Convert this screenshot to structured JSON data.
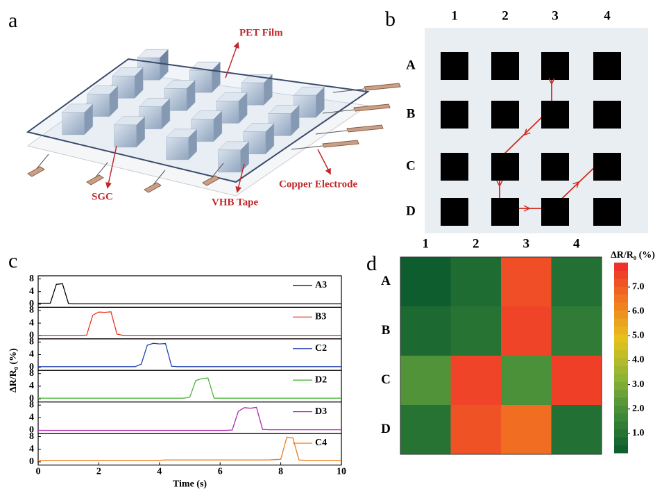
{
  "panel_a": {
    "letter": "a",
    "labels": [
      "PET Film",
      "SGC",
      "VHB Tape",
      "Copper Electrode"
    ]
  },
  "panel_b": {
    "letter": "b",
    "columns": [
      "1",
      "2",
      "3",
      "4"
    ],
    "rows": [
      "A",
      "B",
      "C",
      "D"
    ]
  },
  "chart_data": [
    {
      "type": "line",
      "panel_label": "c",
      "x_label": "Time (s)",
      "y_label": "ΔR/R₀ (%)",
      "x": [
        0,
        0.2,
        0.4,
        0.6,
        0.8,
        1,
        1.2,
        1.4,
        1.6,
        1.8,
        2,
        2.2,
        2.4,
        2.6,
        2.8,
        3,
        3.2,
        3.4,
        3.6,
        3.8,
        4,
        4.2,
        4.4,
        4.6,
        4.8,
        5,
        5.2,
        5.4,
        5.6,
        5.8,
        6,
        6.2,
        6.4,
        6.6,
        6.8,
        7,
        7.2,
        7.4,
        7.6,
        7.8,
        8,
        8.2,
        8.4,
        8.6,
        8.8,
        9,
        9.2,
        9.4,
        9.6,
        9.8,
        10
      ],
      "xlim": [
        0,
        10
      ],
      "xticks": [
        0,
        2,
        4,
        6,
        8,
        10
      ],
      "ylim": [
        -1,
        9
      ],
      "yticks": [
        0,
        4,
        8
      ],
      "legend": "upper right",
      "series": [
        {
          "name": "A3",
          "color": "#000000",
          "values": [
            0.3,
            0.3,
            0.3,
            6.3,
            6.5,
            0.2,
            0.1,
            0.1,
            0.1,
            0.1,
            0.1,
            0.1,
            0.1,
            0.1,
            0.1,
            0.1,
            0.1,
            0.1,
            0.1,
            0.1,
            0.1,
            0.1,
            0.1,
            0.1,
            0.1,
            0.1,
            0.1,
            0.1,
            0.1,
            0.1,
            0.1,
            0.1,
            0.1,
            0.1,
            0.1,
            0.1,
            0.1,
            0.1,
            0.1,
            0.1,
            0.1,
            0.1,
            0.1,
            0.1,
            0.1,
            0.1,
            0.1,
            0.1,
            0.1,
            0.1,
            0.1
          ]
        },
        {
          "name": "B3",
          "color": "#e8321e",
          "values": [
            0.1,
            0.1,
            0.1,
            0.1,
            0.1,
            0.1,
            0.1,
            0.1,
            0.2,
            6.5,
            7.5,
            7.4,
            7.6,
            0.5,
            0.1,
            0.1,
            0.1,
            0.1,
            0.1,
            0.1,
            0.1,
            0.1,
            0.1,
            0.1,
            0.1,
            0.1,
            0.1,
            0.1,
            0.1,
            0.1,
            0.1,
            0.1,
            0.1,
            0.1,
            0.1,
            0.1,
            0.1,
            0.1,
            0.1,
            0.1,
            0.1,
            0.1,
            0.1,
            0.1,
            0.1,
            0.1,
            0.1,
            0.1,
            0.1,
            0.1,
            0.1
          ]
        },
        {
          "name": "C2",
          "color": "#2040b0",
          "values": [
            0.2,
            0.2,
            0.2,
            0.2,
            0.2,
            0.2,
            0.2,
            0.2,
            0.2,
            0.2,
            0.2,
            0.2,
            0.2,
            0.2,
            0.2,
            0.2,
            0.2,
            1.0,
            7.0,
            7.6,
            7.4,
            7.5,
            0.3,
            0.2,
            0.2,
            0.2,
            0.2,
            0.2,
            0.2,
            0.2,
            0.2,
            0.2,
            0.2,
            0.2,
            0.2,
            0.2,
            0.2,
            0.2,
            0.2,
            0.2,
            0.2,
            0.2,
            0.2,
            0.2,
            0.2,
            0.2,
            0.2,
            0.2,
            0.2,
            0.2,
            0.2
          ]
        },
        {
          "name": "D2",
          "color": "#4cb53a",
          "values": [
            0.2,
            0.2,
            0.2,
            0.2,
            0.2,
            0.2,
            0.2,
            0.2,
            0.2,
            0.2,
            0.2,
            0.2,
            0.2,
            0.2,
            0.2,
            0.2,
            0.2,
            0.2,
            0.2,
            0.2,
            0.2,
            0.2,
            0.2,
            0.2,
            0.2,
            0.5,
            5.8,
            6.4,
            6.6,
            0.2,
            0.2,
            0.2,
            0.2,
            0.2,
            0.2,
            0.2,
            0.2,
            0.2,
            0.2,
            0.2,
            0.2,
            0.2,
            0.2,
            0.2,
            0.2,
            0.2,
            0.2,
            0.2,
            0.2,
            0.2,
            0.2
          ]
        },
        {
          "name": "D3",
          "color": "#b02ab0",
          "values": [
            0,
            0,
            0,
            0,
            0,
            0,
            0,
            0,
            0,
            0,
            0,
            0,
            0,
            0,
            0,
            0,
            0,
            0,
            0,
            0,
            0,
            0,
            0,
            0,
            0,
            0,
            0,
            0,
            0,
            0,
            0,
            0,
            0.1,
            6.0,
            7.2,
            7.0,
            7.3,
            0.3,
            0.2,
            0.2,
            0.2,
            0.2,
            0.2,
            0.2,
            0.2,
            0.2,
            0.2,
            0.2,
            0.2,
            0.2,
            0.2
          ]
        },
        {
          "name": "C4",
          "color": "#f07a18",
          "values": [
            0.5,
            0.5,
            0.5,
            0.5,
            0.5,
            0.5,
            0.5,
            0.5,
            0.5,
            0.5,
            0.5,
            0.5,
            0.5,
            0.5,
            0.5,
            0.5,
            0.5,
            0.5,
            0.5,
            0.5,
            0.5,
            0.6,
            0.6,
            0.6,
            0.6,
            0.6,
            0.6,
            0.6,
            0.6,
            0.6,
            0.6,
            0.6,
            0.6,
            0.6,
            0.6,
            0.6,
            0.6,
            0.6,
            0.6,
            0.7,
            0.8,
            7.8,
            7.6,
            0.6,
            0.5,
            0.5,
            0.5,
            0.5,
            0.5,
            0.5,
            0.5
          ]
        }
      ]
    },
    {
      "type": "heatmap",
      "panel_label": "d",
      "colorbar_label": "ΔR/R₀ (%)",
      "columns": [
        "1",
        "2",
        "3",
        "4"
      ],
      "rows": [
        "A",
        "B",
        "C",
        "D"
      ],
      "values": [
        [
          0.3,
          0.8,
          7.3,
          0.9
        ],
        [
          0.7,
          1.0,
          7.5,
          1.3
        ],
        [
          2.1,
          7.5,
          2.0,
          7.6
        ],
        [
          1.0,
          7.2,
          6.7,
          0.9
        ]
      ],
      "clim": [
        0.2,
        8.0
      ],
      "cticks": [
        {
          "value": 1,
          "label": "1.0"
        },
        {
          "value": 2,
          "label": "2.0"
        },
        {
          "value": 3,
          "label": "3.0"
        },
        {
          "value": 4,
          "label": "4.0"
        },
        {
          "value": 5,
          "label": "5.0"
        },
        {
          "value": 6,
          "label": "6.0"
        },
        {
          "value": 7,
          "label": "7.0"
        }
      ],
      "colormap": [
        "#0b5a2e",
        "#3f8a3a",
        "#8fb534",
        "#e6c21c",
        "#f07a20",
        "#ee2a2a"
      ]
    }
  ]
}
